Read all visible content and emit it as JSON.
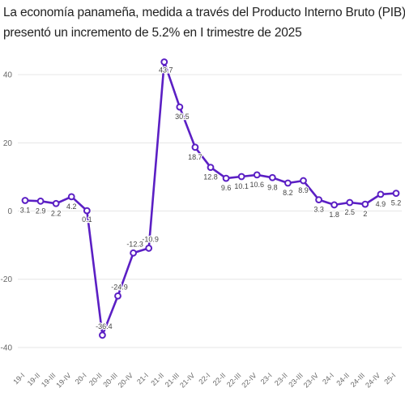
{
  "title_lines": [
    "La economía panameña, medida a través del Producto Interno Bruto (PIB),",
    "presentó un incremento de 5.2% en I trimestre de 2025"
  ],
  "chart_data": {
    "type": "line",
    "title": "La economía panameña, medida a través del Producto Interno Bruto (PIB), presentó un incremento de 5.2% en I trimestre de 2025",
    "xlabel": "",
    "ylabel": "",
    "grid": "horizontal",
    "ylim": [
      -45,
      50
    ],
    "yticks": [
      40,
      20,
      0,
      -20,
      -40
    ],
    "line_color": "#5b1fc4",
    "categories": [
      "19-I",
      "19-II",
      "19-III",
      "19-IV",
      "20-I",
      "20-II",
      "20-III",
      "20-IV",
      "21-I",
      "21-II",
      "21-III",
      "21-IV",
      "22-I",
      "22-II",
      "22-III",
      "22-IV",
      "23-I",
      "23-II",
      "23-III",
      "23-IV",
      "24-I",
      "24-II",
      "24-III",
      "24-IV",
      "25-I"
    ],
    "series": [
      {
        "values": [
          3.1,
          2.9,
          2.2,
          4.2,
          0.1,
          -36.4,
          -24.9,
          -12.3,
          -10.9,
          43.7,
          30.5,
          18.7,
          12.8,
          9.6,
          10.1,
          10.6,
          9.8,
          8.2,
          8.9,
          3.3,
          1.8,
          2.5,
          2,
          4.9,
          5.2
        ],
        "labels": [
          "3.1",
          "2.9",
          "2.2",
          "4.2",
          "0.1",
          "-36.4",
          "-24.9",
          "-12.3",
          "-10.9",
          "43.7",
          "30.5",
          "18.7",
          "12.8",
          "9.6",
          "10.1",
          "10.6",
          "9.8",
          "8.2",
          "8.9",
          "3.3",
          "1.8",
          "2.5",
          "2",
          "4.9",
          "5.2"
        ]
      }
    ]
  }
}
